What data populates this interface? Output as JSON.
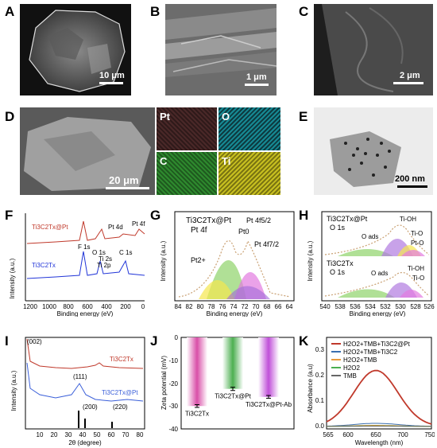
{
  "panels": {
    "A": {
      "label": "A",
      "scale": "10 μm"
    },
    "B": {
      "label": "B",
      "scale": "1 μm"
    },
    "C": {
      "label": "C",
      "scale": "2 μm"
    },
    "D": {
      "label": "D",
      "scale": "20 μm",
      "maps": [
        "Pt",
        "O",
        "C",
        "Ti"
      ]
    },
    "E": {
      "label": "E",
      "scale": "200 nm"
    },
    "F": {
      "label": "F"
    },
    "G": {
      "label": "G"
    },
    "H": {
      "label": "H"
    },
    "I": {
      "label": "I"
    },
    "J": {
      "label": "J"
    },
    "K": {
      "label": "K"
    }
  },
  "chart_data": [
    {
      "panel": "F",
      "type": "line",
      "xlabel": "Binding energy (eV)",
      "ylabel": "Intensity (a.u.)",
      "xlim": [
        1300,
        0
      ],
      "xticks": [
        "1200",
        "1000",
        "800",
        "600",
        "400",
        "200",
        "0"
      ],
      "series": [
        {
          "name": "Ti3C2Tx@Pt",
          "color": "#c0392b"
        },
        {
          "name": "Ti3C2Tx",
          "color": "#2236d8"
        }
      ],
      "peak_labels": [
        "F 1s",
        "O 1s",
        "Ti 2s",
        "Ti 2p",
        "Pt 4d",
        "C 1s",
        "Pt 4f"
      ]
    },
    {
      "panel": "G",
      "type": "line",
      "xlabel": "Binding energy (eV)",
      "ylabel": "Intensity (a.u.)",
      "xlim": [
        84,
        64
      ],
      "xticks": [
        "84",
        "82",
        "80",
        "78",
        "76",
        "74",
        "72",
        "70",
        "68",
        "66",
        "64"
      ],
      "title": "Ti3C2Tx@Pt",
      "subtitle": "Pt 4f",
      "annotations": [
        "Pt 4f5/2",
        "Pt0",
        "Pt 4f7/2",
        "Pt2+"
      ]
    },
    {
      "panel": "H",
      "type": "line",
      "xlabel": "Binding energy (eV)",
      "ylabel": "Intensity (a.u.)",
      "xlim": [
        540,
        526
      ],
      "xticks": [
        "540",
        "538",
        "536",
        "534",
        "532",
        "530",
        "528",
        "526"
      ],
      "groups": [
        {
          "title": "Ti3C2Tx@Pt",
          "subtitle": "O 1s",
          "components": [
            "O ads",
            "Ti-OH",
            "Ti-O",
            "Pt-O"
          ]
        },
        {
          "title": "Ti3C2Tx",
          "subtitle": "O 1s",
          "components": [
            "O ads",
            "Ti-OH",
            "Ti-O"
          ]
        }
      ]
    },
    {
      "panel": "I",
      "type": "line",
      "xlabel": "2θ (degree)",
      "ylabel": "Intensity (a.u.)",
      "xlim": [
        0,
        80
      ],
      "xticks": [
        "10",
        "20",
        "30",
        "40",
        "50",
        "60",
        "70",
        "80"
      ],
      "series": [
        {
          "name": "Ti3C2Tx",
          "color": "#c0392b"
        },
        {
          "name": "Ti3C2Tx@Pt",
          "color": "#3a5fd9"
        }
      ],
      "peak_labels": [
        "(002)",
        "(111)",
        "(200)",
        "(220)"
      ]
    },
    {
      "panel": "J",
      "type": "bar",
      "ylabel": "Zeta potential (mV)",
      "ylim": [
        -40,
        0
      ],
      "yticks": [
        "0",
        "-10",
        "-20",
        "-30",
        "-40"
      ],
      "categories": [
        "Ti3C2Tx",
        "Ti3C2Tx@Pt",
        "Ti3C2Tx@Pt-Ab"
      ],
      "values": [
        -30,
        -22.5,
        -26
      ],
      "errors": [
        0.6,
        0.7,
        0.6
      ]
    },
    {
      "panel": "K",
      "type": "line",
      "xlabel": "Wavelength (nm)",
      "ylabel": "Absorbance (a.u)",
      "xlim": [
        565,
        750
      ],
      "ylim": [
        -0.01,
        0.35
      ],
      "xticks": [
        "565",
        "600",
        "650",
        "700",
        "750"
      ],
      "yticks": [
        "0.0",
        "0.1",
        "0.2",
        "0.3"
      ],
      "series": [
        {
          "name": "H2O2+TMB+Ti3C2@Pt",
          "color": "#c0392b",
          "peak_x": 652,
          "peak_y": 0.22
        },
        {
          "name": "H2O2+TMB+Ti3C2",
          "color": "#3a6fb0",
          "peak_x": 652,
          "peak_y": 0.012
        },
        {
          "name": "H2O2+TMB",
          "color": "#e89a3c",
          "peak_x": 652,
          "peak_y": 0.004
        },
        {
          "name": "H2O2",
          "color": "#4caf50",
          "peak_x": 652,
          "peak_y": 0.002
        },
        {
          "name": "TMB",
          "color": "#666666",
          "peak_x": 652,
          "peak_y": 0.001
        }
      ]
    }
  ]
}
